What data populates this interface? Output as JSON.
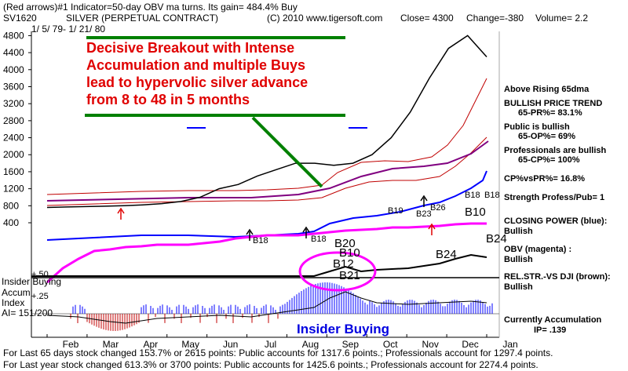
{
  "header": {
    "line1": "(Red arrows)#1 Indicator=50-day OBV ma turns. Its gain= 484.4% Buy",
    "symbol": "SV1620",
    "name": "SILVER (PERPETUAL CONTRACT)",
    "copyright": "(C) 2010 www.tigersoft.com",
    "close": "Close=   4300",
    "change": "Change=-380",
    "volume": "Volume= 2.2",
    "daterange": "1/ 5/ 79-  1/ 21/ 80"
  },
  "callout": {
    "l1": "Decisive Breakout with Intense",
    "l2": "Accumulation and multiple Buys",
    "l3": "lead to hypervolic silver advance",
    "l4": "from 8 to 48 in 5 months"
  },
  "right_labels": {
    "r1": "Above Rising 65dma",
    "r2": "BULLISH PRICE TREND",
    "r3": "65-PR%= 83.1%",
    "r4": "Public is bullish",
    "r5": "65-OP%= 69%",
    "r6": "Professionals are bullish",
    "r7": "65-CP%= 100%",
    "r8": "CP%vsPR%= 16.8%",
    "r9": "Strength Profess/Pub= 1",
    "r10": "CLOSING POWER (blue):",
    "r11": "Bullish",
    "r12": "OBV (magenta) :",
    "r13": "Bullish",
    "r14": "REL.STR.-VS DJI (brown):",
    "r15": "Bullish",
    "r16": "Currently Accumulation",
    "r17": "IP= .139"
  },
  "left_labels": {
    "insider": "Insider Buying",
    "plus50": "+.50",
    "accum": "Accum",
    "index": "Index",
    "ai": "AI= 151/200",
    "plus25": "+.25"
  },
  "insider_buying_label": "Insider Buying",
  "footer": {
    "l1": "For Last 65 days stock changed  153.7% or  2615 points:  Public accounts for  1317.6 points.;  Professionals account for  1297.4 points.",
    "l2": "For Last year stock changed  613.3% or  3700 points:  Public accounts for  1425.6 points.;  Professionals account for  2274.4 points."
  },
  "signals": [
    {
      "label": "B18"
    },
    {
      "label": "B18"
    },
    {
      "label": "B20"
    },
    {
      "label": "B10"
    },
    {
      "label": "B12"
    },
    {
      "label": "B21"
    },
    {
      "label": "B19"
    },
    {
      "label": "B23"
    },
    {
      "label": "B26"
    },
    {
      "label": "B18"
    },
    {
      "label": "B18"
    },
    {
      "label": "B10"
    },
    {
      "label": "B24"
    },
    {
      "label": "B24"
    }
  ],
  "chart_data": {
    "type": "line",
    "yticks": [
      400,
      800,
      1200,
      1600,
      2000,
      2400,
      2800,
      3200,
      3600,
      4000,
      4400,
      4800
    ],
    "ylim": [
      400,
      4900
    ],
    "months": [
      "Feb",
      "Mar",
      "Apr",
      "May",
      "Jun",
      "Jul",
      "Aug",
      "Sep",
      "Oct",
      "Nov",
      "Dec",
      "Jan"
    ],
    "series": [
      {
        "values": [
          760,
          770,
          780,
          790,
          800,
          820,
          850,
          900,
          1000,
          1200,
          1300,
          1500,
          1650,
          1800,
          1800,
          1750,
          1800,
          2000,
          2400,
          3000,
          3800,
          4500,
          4800,
          4300
        ]
      }
    ],
    "colors": {
      "price": "#000000",
      "closing_power": "#0000ff",
      "obv": "#ff00ff",
      "ma": "#c00000",
      "accum_pos": "#0000ff",
      "accum_neg": "#c00000",
      "green": "#008000"
    }
  }
}
